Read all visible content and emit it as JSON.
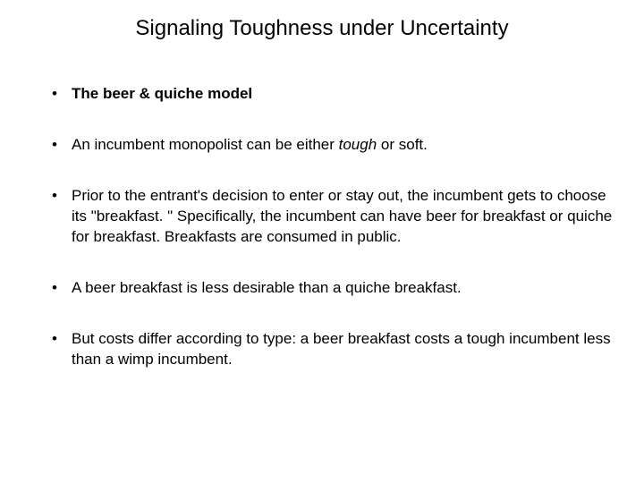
{
  "title": "Signaling Toughness under Uncertainty",
  "bullets": [
    {
      "prefix": "",
      "boldText": "The beer & quiche model",
      "suffix": ""
    },
    {
      "prefix": "An incumbent monopolist can be either ",
      "italicText": "tough",
      "suffix": " or soft."
    },
    {
      "prefix": "Prior to the entrant's decision to enter or stay out, the incumbent gets to choose its \"breakfast. \"  Specifically, the incumbent can have beer for breakfast or quiche for breakfast.  Breakfasts are consumed in public.",
      "italicText": "",
      "suffix": ""
    },
    {
      "prefix": "A beer breakfast is less desirable than a quiche breakfast.",
      "italicText": "",
      "suffix": ""
    },
    {
      "prefix": "But costs differ according to type:  a beer breakfast costs a tough incumbent less than a wimp incumbent.",
      "italicText": "",
      "suffix": ""
    }
  ]
}
